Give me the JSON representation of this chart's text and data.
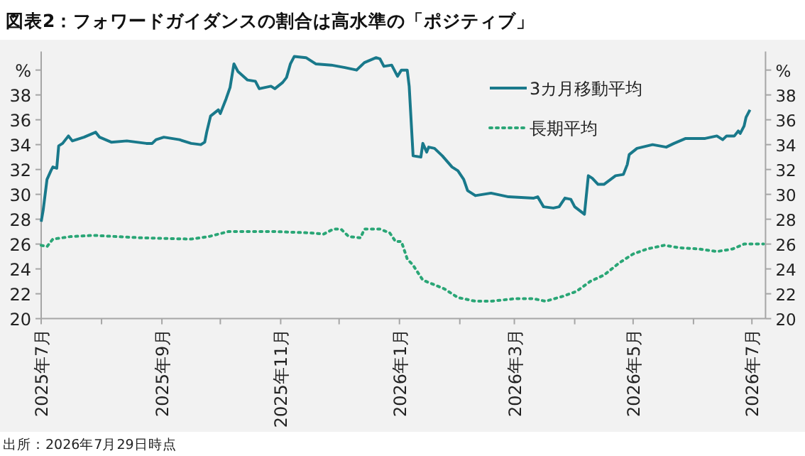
{
  "chart_data": {
    "type": "line",
    "title": "図表2：フォワードガイダンスの割合は高水準の「ポジティブ」",
    "annotations": [
      "出所：2026年7月29日時点"
    ],
    "xlim": [
      "2025-07-01",
      "2026-07-08"
    ],
    "xticks": [
      {
        "value": "2025-07-01",
        "label": "2025年7月"
      },
      {
        "value": "2025-08-01",
        "label": null
      },
      {
        "value": "2025-09-01",
        "label": "2025年9月"
      },
      {
        "value": "2025-10-01",
        "label": null
      },
      {
        "value": "2025-11-01",
        "label": "2025年11月"
      },
      {
        "value": "2025-12-01",
        "label": null
      },
      {
        "value": "2026-01-01",
        "label": "2026年1月"
      },
      {
        "value": "2026-02-01",
        "label": null
      },
      {
        "value": "2026-03-01",
        "label": "2026年3月"
      },
      {
        "value": "2026-04-01",
        "label": null
      },
      {
        "value": "2026-05-01",
        "label": "2026年5月"
      },
      {
        "value": "2026-06-01",
        "label": null
      },
      {
        "value": "2026-07-01",
        "label": "2026年7月"
      }
    ],
    "ylim": [
      20,
      41.5
    ],
    "yticks": [
      20,
      22,
      24,
      26,
      28,
      30,
      32,
      34,
      36,
      38,
      {
        "value": 40,
        "label": "%"
      }
    ],
    "y2lim": [
      20,
      41.5
    ],
    "y2ticks": [
      20,
      22,
      24,
      26,
      28,
      30,
      32,
      34,
      36,
      38,
      {
        "value": 40,
        "label": "%"
      }
    ],
    "legend": "top right",
    "grid": false,
    "series": [
      {
        "name": "3カ月移動平均",
        "color": "#19798b",
        "line_style": "solid",
        "x": [
          "2025-07-01",
          "2025-07-02",
          "2025-07-04",
          "2025-07-06",
          "2025-07-07",
          "2025-07-09",
          "2025-07-10",
          "2025-07-12",
          "2025-07-15",
          "2025-07-17",
          "2025-07-23",
          "2025-07-29",
          "2025-07-31",
          "2025-08-06",
          "2025-08-14",
          "2025-08-24",
          "2025-08-27",
          "2025-08-29",
          "2025-09-02",
          "2025-09-10",
          "2025-09-16",
          "2025-09-21",
          "2025-09-23",
          "2025-09-24",
          "2025-09-26",
          "2025-09-30",
          "2025-10-01",
          "2025-10-02",
          "2025-10-04",
          "2025-10-06",
          "2025-10-08",
          "2025-10-10",
          "2025-10-15",
          "2025-10-19",
          "2025-10-21",
          "2025-10-27",
          "2025-10-29",
          "2025-11-02",
          "2025-11-04",
          "2025-11-06",
          "2025-11-08",
          "2025-11-14",
          "2025-11-19",
          "2025-11-27",
          "2025-12-04",
          "2025-12-10",
          "2025-12-14",
          "2025-12-20",
          "2025-12-22",
          "2025-12-24",
          "2025-12-28",
          "2025-12-31",
          "2026-01-02",
          "2026-01-05",
          "2026-01-06",
          "2026-01-08",
          "2026-01-12",
          "2026-01-13",
          "2026-01-15",
          "2026-01-16",
          "2026-01-19",
          "2026-01-23",
          "2026-01-28",
          "2026-01-31",
          "2026-02-03",
          "2026-02-05",
          "2026-02-09",
          "2026-02-17",
          "2026-02-26",
          "2026-03-11",
          "2026-03-13",
          "2026-03-16",
          "2026-03-21",
          "2026-03-24",
          "2026-03-27",
          "2026-03-30",
          "2026-04-01",
          "2026-04-06",
          "2026-04-08",
          "2026-04-10",
          "2026-04-13",
          "2026-04-16",
          "2026-04-22",
          "2026-04-26",
          "2026-04-28",
          "2026-04-29",
          "2026-05-03",
          "2026-05-11",
          "2026-05-18",
          "2026-05-22",
          "2026-05-28",
          "2026-06-07",
          "2026-06-13",
          "2026-06-16",
          "2026-06-18",
          "2026-06-22",
          "2026-06-24",
          "2026-06-25",
          "2026-06-27",
          "2026-06-28",
          "2026-06-30"
        ],
        "values": [
          27.8,
          28.7,
          31.2,
          31.9,
          32.2,
          32.1,
          33.9,
          34.1,
          34.7,
          34.3,
          34.6,
          35.0,
          34.6,
          34.2,
          34.3,
          34.1,
          34.1,
          34.4,
          34.6,
          34.4,
          34.1,
          34.0,
          34.2,
          35.0,
          36.3,
          36.8,
          36.5,
          36.9,
          37.7,
          38.6,
          40.5,
          39.9,
          39.2,
          39.1,
          38.5,
          38.7,
          38.5,
          39.0,
          39.4,
          40.5,
          41.1,
          41.0,
          40.5,
          40.4,
          40.2,
          40.0,
          40.6,
          41.0,
          40.9,
          40.3,
          40.4,
          39.5,
          40.0,
          40.0,
          38.7,
          33.1,
          33.0,
          34.1,
          33.4,
          33.8,
          33.7,
          33.1,
          32.2,
          31.9,
          31.2,
          30.3,
          29.9,
          30.1,
          29.8,
          29.7,
          29.8,
          29.0,
          28.9,
          29.0,
          29.7,
          29.6,
          29.0,
          28.4,
          31.5,
          31.3,
          30.8,
          30.8,
          31.5,
          31.6,
          32.4,
          33.2,
          33.7,
          34.0,
          33.8,
          34.1,
          34.5,
          34.5,
          34.7,
          34.4,
          34.7,
          34.7,
          35.1,
          34.9,
          35.5,
          36.2,
          36.8
        ]
      },
      {
        "name": "長期平均",
        "color": "#2aa676",
        "line_style": "dotted",
        "x": [
          "2025-07-01",
          "2025-07-04",
          "2025-07-07",
          "2025-07-16",
          "2025-07-28",
          "2025-08-09",
          "2025-08-22",
          "2025-09-16",
          "2025-09-25",
          "2025-10-05",
          "2025-10-30",
          "2025-11-16",
          "2025-11-23",
          "2025-11-28",
          "2025-12-02",
          "2025-12-06",
          "2025-12-12",
          "2025-12-14",
          "2025-12-22",
          "2025-12-27",
          "2025-12-30",
          "2026-01-02",
          "2026-01-05",
          "2026-01-08",
          "2026-01-13",
          "2026-01-24",
          "2026-01-31",
          "2026-02-09",
          "2026-02-17",
          "2026-03-01",
          "2026-03-11",
          "2026-03-17",
          "2026-03-26",
          "2026-04-02",
          "2026-04-09",
          "2026-04-16",
          "2026-04-24",
          "2026-05-01",
          "2026-05-08",
          "2026-05-17",
          "2026-05-25",
          "2026-06-04",
          "2026-06-13",
          "2026-06-21",
          "2026-06-27",
          "2026-07-07"
        ],
        "values": [
          25.9,
          25.8,
          26.4,
          26.6,
          26.7,
          26.6,
          26.5,
          26.4,
          26.6,
          27.0,
          27.0,
          26.9,
          26.8,
          27.2,
          27.2,
          26.6,
          26.5,
          27.2,
          27.2,
          26.9,
          26.2,
          26.2,
          24.8,
          24.3,
          23.1,
          22.4,
          21.7,
          21.4,
          21.4,
          21.6,
          21.6,
          21.4,
          21.8,
          22.2,
          23.0,
          23.5,
          24.5,
          25.2,
          25.6,
          25.9,
          25.7,
          25.6,
          25.4,
          25.6,
          26.0,
          26.0
        ]
      }
    ]
  }
}
